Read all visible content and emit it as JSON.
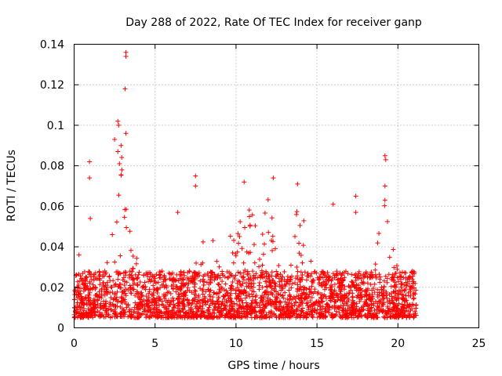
{
  "chart_data": {
    "type": "scatter",
    "title": "Day 288 of 2022, Rate Of TEC Index for receiver ganp",
    "xlabel": "GPS time / hours",
    "ylabel": "ROTI / TECUs",
    "xlim": [
      0,
      25
    ],
    "ylim": [
      0,
      0.14
    ],
    "xticks": [
      0,
      5,
      10,
      15,
      20,
      25
    ],
    "xtick_labels": [
      "0",
      "5",
      "10",
      "15",
      "20",
      "25"
    ],
    "yticks": [
      0,
      0.02,
      0.04,
      0.06,
      0.08,
      0.1,
      0.12,
      0.14
    ],
    "ytick_labels": [
      "0",
      "0.02",
      "0.04",
      "0.06",
      "0.08",
      "0.1",
      "0.12",
      "0.14"
    ],
    "grid": true,
    "marker": "+",
    "color": "#ff0000",
    "series": [
      {
        "name": "ROTI",
        "x_range": [
          0,
          21.2
        ],
        "baseline_range": [
          0.005,
          0.028
        ],
        "notable_points": [
          {
            "x": 3.2,
            "y": 0.136
          },
          {
            "x": 3.2,
            "y": 0.134
          },
          {
            "x": 3.15,
            "y": 0.118
          },
          {
            "x": 2.7,
            "y": 0.102
          },
          {
            "x": 2.75,
            "y": 0.1
          },
          {
            "x": 3.2,
            "y": 0.096
          },
          {
            "x": 2.5,
            "y": 0.093
          },
          {
            "x": 2.9,
            "y": 0.09
          },
          {
            "x": 2.7,
            "y": 0.087
          },
          {
            "x": 2.8,
            "y": 0.081
          },
          {
            "x": 2.95,
            "y": 0.078
          },
          {
            "x": 0.95,
            "y": 0.082
          },
          {
            "x": 0.95,
            "y": 0.074
          },
          {
            "x": 7.5,
            "y": 0.075
          },
          {
            "x": 7.5,
            "y": 0.07
          },
          {
            "x": 12.3,
            "y": 0.074
          },
          {
            "x": 10.5,
            "y": 0.072
          },
          {
            "x": 13.8,
            "y": 0.071
          },
          {
            "x": 19.2,
            "y": 0.085
          },
          {
            "x": 19.25,
            "y": 0.083
          },
          {
            "x": 19.2,
            "y": 0.07
          },
          {
            "x": 19.2,
            "y": 0.063
          },
          {
            "x": 17.4,
            "y": 0.065
          },
          {
            "x": 17.4,
            "y": 0.057
          },
          {
            "x": 16.0,
            "y": 0.061
          },
          {
            "x": 6.4,
            "y": 0.057
          },
          {
            "x": 1.0,
            "y": 0.054
          },
          {
            "x": 0.3,
            "y": 0.036
          }
        ]
      }
    ]
  }
}
